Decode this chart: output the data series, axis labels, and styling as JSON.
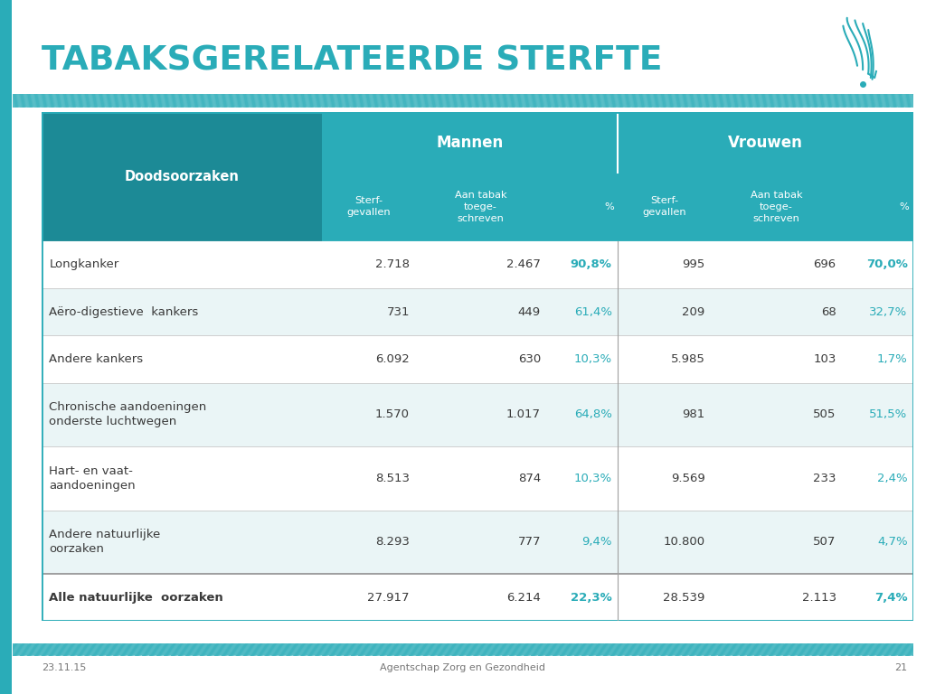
{
  "title": "TABAKSGERELATEERDE STERFTE",
  "title_color": "#2AACB8",
  "background_color": "#FFFFFF",
  "teal_color": "#2AACB8",
  "dark_teal": "#1C8A96",
  "left_bar_color": "#2AACB8",
  "col1_header": "Doodsoorzaken",
  "mannen_header": "Mannen",
  "vrouwen_header": "Vrouwen",
  "rows": [
    {
      "label": "Longkanker",
      "m_sterf": "2.718",
      "m_tabak": "2.467",
      "m_pct": "90,8%",
      "v_sterf": "995",
      "v_tabak": "696",
      "v_pct": "70,0%",
      "pct_bold": true,
      "bg": "#FFFFFF",
      "bold_label": false,
      "tall": false
    },
    {
      "label": "Aëro-digestieve  kankers",
      "m_sterf": "731",
      "m_tabak": "449",
      "m_pct": "61,4%",
      "v_sterf": "209",
      "v_tabak": "68",
      "v_pct": "32,7%",
      "pct_bold": false,
      "bg": "#EAF5F6",
      "bold_label": false,
      "tall": false
    },
    {
      "label": "Andere kankers",
      "m_sterf": "6.092",
      "m_tabak": "630",
      "m_pct": "10,3%",
      "v_sterf": "5.985",
      "v_tabak": "103",
      "v_pct": "1,7%",
      "pct_bold": false,
      "bg": "#FFFFFF",
      "bold_label": false,
      "tall": false
    },
    {
      "label": "Chronische aandoeningen\nonderste luchtwegen",
      "m_sterf": "1.570",
      "m_tabak": "1.017",
      "m_pct": "64,8%",
      "v_sterf": "981",
      "v_tabak": "505",
      "v_pct": "51,5%",
      "pct_bold": false,
      "bg": "#EAF5F6",
      "bold_label": false,
      "tall": true
    },
    {
      "label": "Hart- en vaat-\naandoeningen",
      "m_sterf": "8.513",
      "m_tabak": "874",
      "m_pct": "10,3%",
      "v_sterf": "9.569",
      "v_tabak": "233",
      "v_pct": "2,4%",
      "pct_bold": false,
      "bg": "#FFFFFF",
      "bold_label": false,
      "tall": true
    },
    {
      "label": "Andere natuurlijke\noorzaken",
      "m_sterf": "8.293",
      "m_tabak": "777",
      "m_pct": "9,4%",
      "v_sterf": "10.800",
      "v_tabak": "507",
      "v_pct": "4,7%",
      "pct_bold": false,
      "bg": "#EAF5F6",
      "bold_label": false,
      "tall": true
    },
    {
      "label": "Alle natuurlijke  oorzaken",
      "m_sterf": "27.917",
      "m_tabak": "6.214",
      "m_pct": "22,3%",
      "v_sterf": "28.539",
      "v_tabak": "2.113",
      "v_pct": "7,4%",
      "pct_bold": true,
      "bg": "#FFFFFF",
      "bold_label": true,
      "tall": false
    }
  ],
  "footer_date": "23.11.15",
  "footer_agency": "Agentschap Zorg en Gezondheid",
  "footer_page": "21"
}
